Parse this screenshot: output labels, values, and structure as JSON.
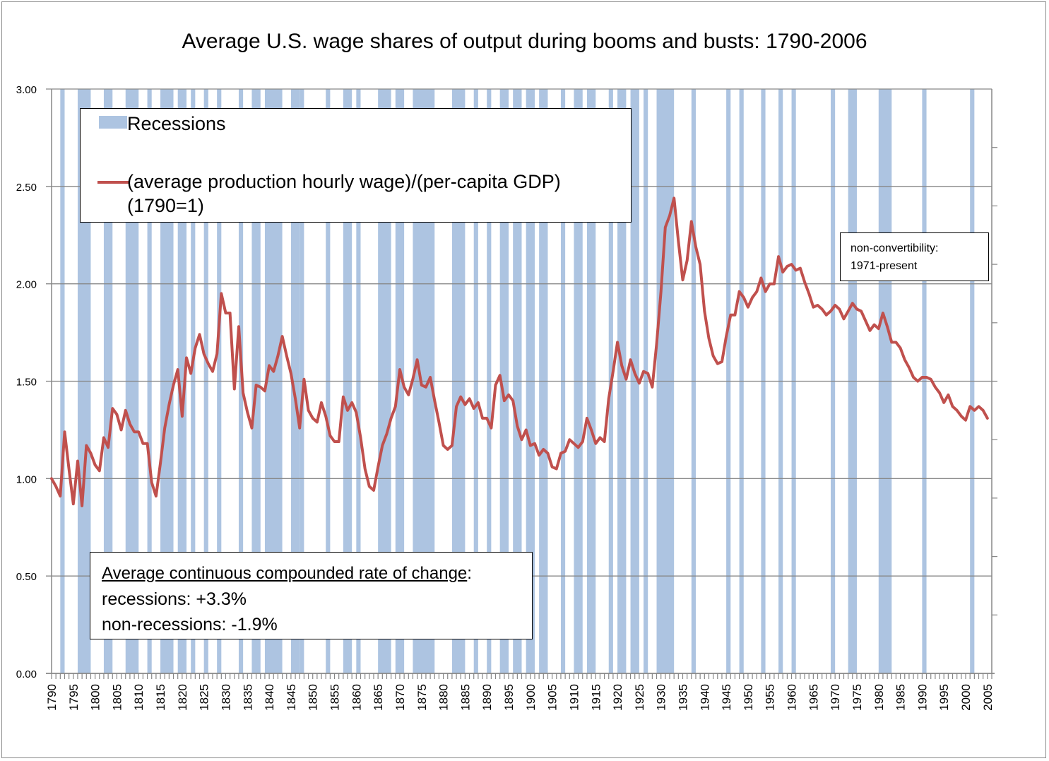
{
  "chart_data": {
    "type": "line",
    "title": "Average U.S. wage shares of output during booms and busts: 1790-2006",
    "xlabel": "",
    "ylabel": "",
    "xlim": [
      1790,
      2006
    ],
    "ylim": [
      0,
      3
    ],
    "grid": true,
    "y_ticks": [
      "0.00",
      "0.50",
      "1.00",
      "1.50",
      "2.00",
      "2.50",
      "3.00"
    ],
    "y_tick_values": [
      0,
      0.5,
      1.0,
      1.5,
      2.0,
      2.5,
      3.0
    ],
    "x_ticks": [
      "1790",
      "1795",
      "1800",
      "1805",
      "1810",
      "1815",
      "1820",
      "1825",
      "1830",
      "1835",
      "1840",
      "1845",
      "1850",
      "1855",
      "1860",
      "1865",
      "1870",
      "1875",
      "1880",
      "1885",
      "1890",
      "1895",
      "1900",
      "1905",
      "1910",
      "1915",
      "1920",
      "1925",
      "1930",
      "1935",
      "1940",
      "1945",
      "1950",
      "1955",
      "1960",
      "1965",
      "1970",
      "1975",
      "1980",
      "1985",
      "1990",
      "1995",
      "2000",
      "2005"
    ],
    "legend": {
      "placement": "top-left",
      "entries": [
        {
          "name": "Recessions",
          "type": "bar",
          "color": "#adc4e1"
        },
        {
          "name": "(average production hourly wage)/(per-capita GDP)",
          "name_line2": "(1790=1)",
          "type": "line",
          "color": "#c0504d"
        }
      ]
    },
    "recessions": [
      [
        1792,
        1793
      ],
      [
        1796,
        1799
      ],
      [
        1802,
        1804
      ],
      [
        1807,
        1810
      ],
      [
        1812,
        1813
      ],
      [
        1815,
        1818
      ],
      [
        1819,
        1821
      ],
      [
        1822,
        1823
      ],
      [
        1825,
        1826
      ],
      [
        1828,
        1829
      ],
      [
        1833,
        1834
      ],
      [
        1836,
        1838
      ],
      [
        1839,
        1843
      ],
      [
        1845,
        1847
      ],
      [
        1847,
        1848
      ],
      [
        1853,
        1854
      ],
      [
        1857,
        1859
      ],
      [
        1860,
        1861
      ],
      [
        1865,
        1868
      ],
      [
        1869,
        1871
      ],
      [
        1873,
        1878
      ],
      [
        1882,
        1885
      ],
      [
        1887,
        1888
      ],
      [
        1890,
        1891
      ],
      [
        1893,
        1895
      ],
      [
        1896,
        1898
      ],
      [
        1899,
        1901
      ],
      [
        1902,
        1904
      ],
      [
        1907,
        1908
      ],
      [
        1910,
        1912
      ],
      [
        1913,
        1915
      ],
      [
        1918,
        1919
      ],
      [
        1920,
        1922
      ],
      [
        1923,
        1925
      ],
      [
        1926,
        1927
      ],
      [
        1929,
        1933
      ],
      [
        1937,
        1938
      ],
      [
        1945,
        1946
      ],
      [
        1948,
        1949
      ],
      [
        1953,
        1954
      ],
      [
        1957,
        1958
      ],
      [
        1960,
        1961
      ],
      [
        1969,
        1970
      ],
      [
        1973,
        1975
      ],
      [
        1980,
        1983
      ],
      [
        1990,
        1991
      ],
      [
        2001,
        2002
      ]
    ],
    "series": [
      {
        "name": "(average production hourly wage)/(per-capita GDP) (1790=1)",
        "color": "#c0504d",
        "x_start": 1790,
        "values": [
          1.0,
          0.96,
          0.91,
          1.24,
          1.05,
          0.87,
          1.09,
          0.86,
          1.17,
          1.13,
          1.07,
          1.04,
          1.21,
          1.16,
          1.36,
          1.33,
          1.25,
          1.35,
          1.28,
          1.24,
          1.24,
          1.18,
          1.18,
          0.98,
          0.91,
          1.08,
          1.26,
          1.38,
          1.48,
          1.56,
          1.32,
          1.62,
          1.54,
          1.67,
          1.74,
          1.64,
          1.59,
          1.55,
          1.64,
          1.95,
          1.85,
          1.85,
          1.46,
          1.78,
          1.44,
          1.34,
          1.26,
          1.48,
          1.47,
          1.45,
          1.58,
          1.55,
          1.63,
          1.73,
          1.63,
          1.54,
          1.41,
          1.26,
          1.51,
          1.35,
          1.31,
          1.29,
          1.39,
          1.32,
          1.22,
          1.19,
          1.19,
          1.42,
          1.35,
          1.39,
          1.34,
          1.21,
          1.05,
          0.96,
          0.94,
          1.06,
          1.17,
          1.23,
          1.31,
          1.37,
          1.56,
          1.47,
          1.43,
          1.51,
          1.61,
          1.48,
          1.47,
          1.52,
          1.4,
          1.29,
          1.17,
          1.15,
          1.17,
          1.37,
          1.42,
          1.38,
          1.41,
          1.36,
          1.39,
          1.31,
          1.31,
          1.26,
          1.48,
          1.53,
          1.4,
          1.43,
          1.4,
          1.27,
          1.2,
          1.25,
          1.17,
          1.18,
          1.12,
          1.15,
          1.13,
          1.06,
          1.05,
          1.13,
          1.14,
          1.2,
          1.18,
          1.16,
          1.19,
          1.31,
          1.25,
          1.18,
          1.21,
          1.19,
          1.41,
          1.55,
          1.7,
          1.58,
          1.51,
          1.61,
          1.54,
          1.49,
          1.55,
          1.54,
          1.47,
          1.69,
          1.96,
          2.29,
          2.35,
          2.44,
          2.22,
          2.02,
          2.12,
          2.32,
          2.19,
          2.1,
          1.86,
          1.72,
          1.63,
          1.59,
          1.6,
          1.73,
          1.84,
          1.84,
          1.96,
          1.93,
          1.88,
          1.93,
          1.96,
          2.03,
          1.96,
          2.0,
          2.0,
          2.14,
          2.06,
          2.09,
          2.1,
          2.07,
          2.08,
          2.01,
          1.95,
          1.88,
          1.89,
          1.87,
          1.84,
          1.86,
          1.89,
          1.87,
          1.82,
          1.86,
          1.9,
          1.87,
          1.86,
          1.81,
          1.76,
          1.79,
          1.77,
          1.85,
          1.78,
          1.7,
          1.7,
          1.67,
          1.61,
          1.57,
          1.52,
          1.5,
          1.52,
          1.52,
          1.51,
          1.47,
          1.44,
          1.39,
          1.43,
          1.37,
          1.35,
          1.32,
          1.3,
          1.37,
          1.35,
          1.37,
          1.35,
          1.31
        ]
      }
    ],
    "annotations": {
      "stats_box": {
        "heading": "Average continuous compounded rate of change",
        "heading_suffix": ":",
        "lines": [
          "recessions: +3.3%",
          "non-recessions: -1.9%"
        ]
      },
      "note_box": {
        "lines": [
          "non-convertibility:",
          "1971-present"
        ]
      }
    }
  },
  "colors": {
    "recession": "#adc4e1",
    "line": "#c0504d",
    "grid": "#878787",
    "axis": "#878787"
  }
}
